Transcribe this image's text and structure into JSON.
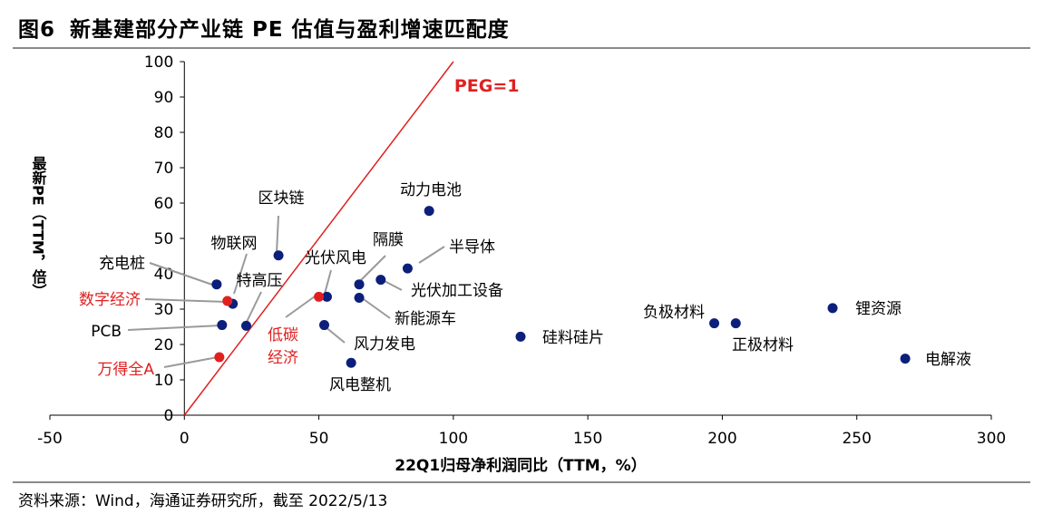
{
  "figure": {
    "number": "图6",
    "title": "新基建部分产业链 PE 估值与盈利增速匹配度",
    "source": "资料来源：Wind，海通证券研究所，截至 2022/5/13"
  },
  "chart_data": {
    "type": "scatter",
    "title": "新基建部分产业链 PE 估值与盈利增速匹配度",
    "xlabel": "22Q1归母净利润同比（TTM，%）",
    "ylabel": "最新PE（TTM，倍）",
    "xlim": [
      -50,
      300
    ],
    "ylim": [
      0,
      100
    ],
    "xticks": [
      -50,
      0,
      50,
      100,
      150,
      200,
      250,
      300
    ],
    "yticks": [
      0,
      10,
      20,
      30,
      40,
      50,
      60,
      70,
      80,
      90,
      100
    ],
    "reference_line": {
      "label": "PEG=1",
      "points": [
        [
          0,
          0
        ],
        [
          100,
          100
        ]
      ],
      "color": "#e02020"
    },
    "colors": {
      "normal": "#0c1f7a",
      "highlight": "#e02020"
    },
    "points": [
      {
        "name": "动力电池",
        "x": 91,
        "y": 57.8,
        "highlight": false
      },
      {
        "name": "区块链",
        "x": 35,
        "y": 45.2,
        "highlight": false
      },
      {
        "name": "半导体",
        "x": 83,
        "y": 41.5,
        "highlight": false
      },
      {
        "name": "物联网",
        "x": 18,
        "y": 31.5,
        "highlight": false
      },
      {
        "name": "充电桩",
        "x": 12,
        "y": 37,
        "highlight": false
      },
      {
        "name": "特高压",
        "x": 23,
        "y": 25.3,
        "highlight": false
      },
      {
        "name": "隔膜",
        "x": 65,
        "y": 37,
        "highlight": false
      },
      {
        "name": "光伏加工设备",
        "x": 73,
        "y": 38.3,
        "highlight": false
      },
      {
        "name": "光伏风电",
        "x": 53,
        "y": 33.5,
        "highlight": false
      },
      {
        "name": "新能源车",
        "x": 65,
        "y": 33.2,
        "highlight": false
      },
      {
        "name": "PCB",
        "x": 14,
        "y": 25.5,
        "highlight": false
      },
      {
        "name": "风力发电",
        "x": 52,
        "y": 25.5,
        "highlight": false
      },
      {
        "name": "风电整机",
        "x": 62,
        "y": 14.8,
        "highlight": false
      },
      {
        "name": "硅料硅片",
        "x": 125,
        "y": 22.2,
        "highlight": false
      },
      {
        "name": "负极材料",
        "x": 197,
        "y": 26,
        "highlight": false
      },
      {
        "name": "正极材料",
        "x": 205,
        "y": 26,
        "highlight": false
      },
      {
        "name": "锂资源",
        "x": 241,
        "y": 30.3,
        "highlight": false
      },
      {
        "name": "电解液",
        "x": 268,
        "y": 16,
        "highlight": false
      },
      {
        "name": "数字经济",
        "x": 16,
        "y": 32.3,
        "highlight": true
      },
      {
        "name": "低碳经济",
        "x": 50,
        "y": 33.5,
        "highlight": true
      },
      {
        "name": "万得全A",
        "x": 13,
        "y": 16.4,
        "highlight": true
      }
    ]
  }
}
